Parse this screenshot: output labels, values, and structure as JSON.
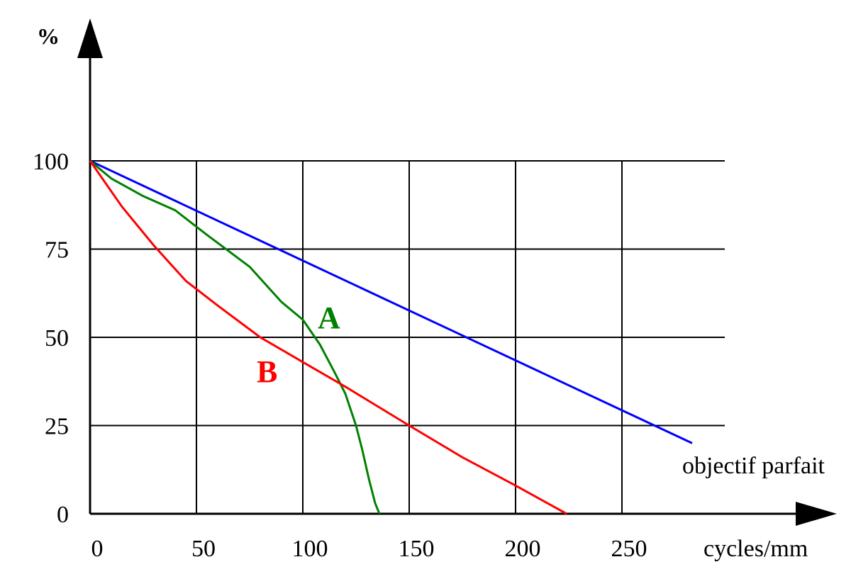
{
  "chart_data": {
    "type": "line",
    "xlabel": "cycles/mm",
    "ylabel": "%",
    "xlim": [
      0,
      300
    ],
    "ylim": [
      0,
      100
    ],
    "x_ticks": [
      0,
      50,
      100,
      150,
      200,
      250
    ],
    "y_ticks": [
      0,
      25,
      50,
      75,
      100
    ],
    "grid": true,
    "series": [
      {
        "name": "objectif parfait",
        "color": "#0000ff",
        "points": [
          [
            0,
            100
          ],
          [
            283,
            20
          ]
        ]
      },
      {
        "name": "A",
        "color": "#008000",
        "points": [
          [
            0,
            100
          ],
          [
            10,
            95
          ],
          [
            25,
            90
          ],
          [
            40,
            86
          ],
          [
            55,
            79
          ],
          [
            75,
            70
          ],
          [
            90,
            60
          ],
          [
            100,
            55
          ],
          [
            108,
            48
          ],
          [
            115,
            40
          ],
          [
            120,
            34
          ],
          [
            125,
            25
          ],
          [
            128,
            18
          ],
          [
            131,
            10
          ],
          [
            134,
            3
          ],
          [
            136,
            0
          ]
        ]
      },
      {
        "name": "B",
        "color": "#ff0000",
        "points": [
          [
            0,
            100
          ],
          [
            15,
            87
          ],
          [
            30,
            76
          ],
          [
            45,
            66
          ],
          [
            60,
            59
          ],
          [
            80,
            50
          ],
          [
            100,
            43
          ],
          [
            120,
            36
          ],
          [
            150,
            25
          ],
          [
            175,
            16
          ],
          [
            200,
            8
          ],
          [
            224,
            0
          ]
        ]
      }
    ]
  }
}
